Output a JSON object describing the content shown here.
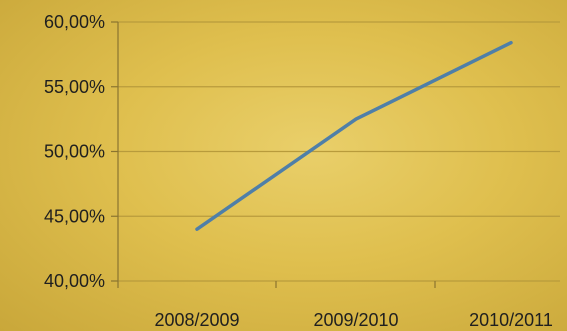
{
  "chart_data": {
    "type": "line",
    "title": "",
    "xlabel": "",
    "ylabel": "",
    "categories": [
      "2008/2009",
      "2009/2010",
      "2010/2011"
    ],
    "series": [
      {
        "values": [
          44.0,
          52.5,
          58.4
        ],
        "color": "#4f7fa8"
      }
    ],
    "ylim": [
      40,
      60
    ],
    "yticks": [
      40,
      45,
      50,
      55,
      60
    ],
    "ytick_labels": [
      "40,00%",
      "45,00%",
      "50,00%",
      "55,00%",
      "60,00%"
    ],
    "grid": true,
    "legend": "none"
  }
}
